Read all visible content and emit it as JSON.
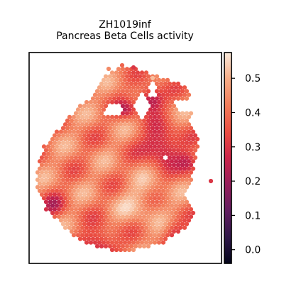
{
  "chart_data": {
    "type": "heatmap",
    "title": [
      "ZH1019inf",
      "Pancreas Beta Cells activity"
    ],
    "colorbar": {
      "colormap": "rocket",
      "range": [
        -0.04,
        0.575
      ],
      "ticks": [
        0.0,
        0.1,
        0.2,
        0.3,
        0.4,
        0.5
      ],
      "tick_labels": [
        "0.0",
        "0.1",
        "0.2",
        "0.3",
        "0.4",
        "0.5"
      ]
    },
    "xlabel": "",
    "ylabel": "",
    "grid": false,
    "legend": "colorbar-right",
    "value_summary": {
      "min": -0.03,
      "max": 0.57,
      "typical_interior": 0.42,
      "low_edge_regions": [
        "upper-right notch",
        "lower-left rim",
        "bottom rim"
      ]
    }
  }
}
